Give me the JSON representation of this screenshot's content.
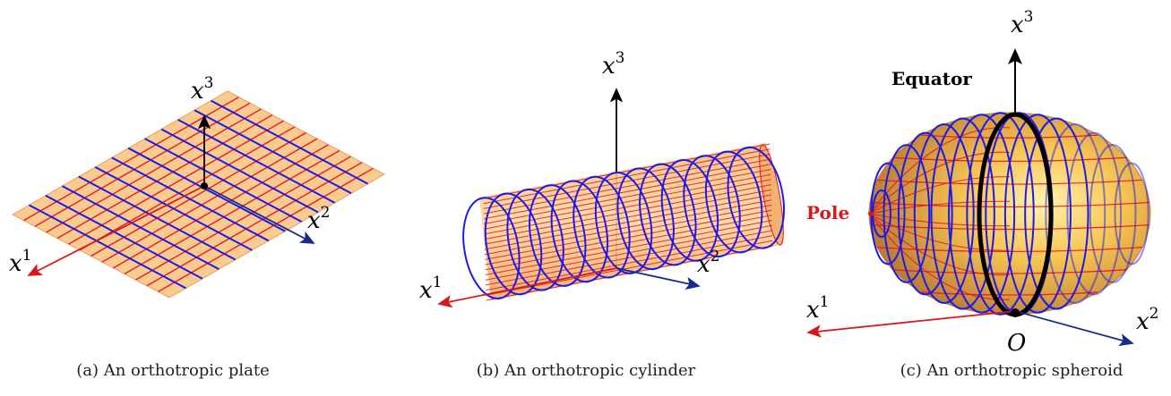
{
  "panels": [
    {
      "id": "a",
      "caption": "(a) An orthotropic plate",
      "axes": {
        "x1": "x",
        "x1_sup": "1",
        "x2": "x",
        "x2_sup": "2",
        "x3": "x",
        "x3_sup": "3"
      }
    },
    {
      "id": "b",
      "caption": "(b) An orthotropic cylinder",
      "axes": {
        "x1": "x",
        "x1_sup": "1",
        "x2": "x",
        "x2_sup": "2",
        "x3": "x",
        "x3_sup": "3"
      }
    },
    {
      "id": "c",
      "caption": "(c) An orthotropic spheroid",
      "axes": {
        "x1": "x",
        "x1_sup": "1",
        "x2": "x",
        "x2_sup": "2",
        "x3": "x",
        "x3_sup": "3"
      },
      "equator_label": "Equator",
      "pole_label": "Pole",
      "origin_label": "O"
    }
  ],
  "colors": {
    "surface_fill": "#f9c98a",
    "red_lines": "#e8101a",
    "blue_lines": "#1a1aee",
    "axis_red": "#d81818",
    "axis_blue": "#1a2a8a",
    "axis_black": "#000000",
    "equator": "#000000",
    "pole_text": "#d81818"
  }
}
